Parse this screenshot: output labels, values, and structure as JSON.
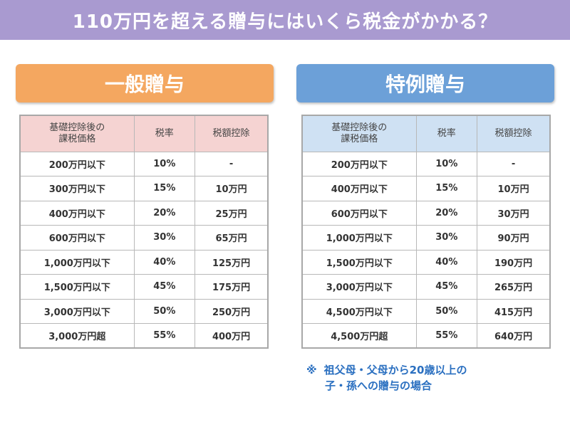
{
  "title": "110万円を超える贈与にはいくら税金がかかる？",
  "general": {
    "label": "一般贈与",
    "headers": [
      "基礎控除後の\n課税価格",
      "税率",
      "税額控除"
    ],
    "rows": [
      [
        "200万円以下",
        "10%",
        "-"
      ],
      [
        "300万円以下",
        "15%",
        "10万円"
      ],
      [
        "400万円以下",
        "20%",
        "25万円"
      ],
      [
        "600万円以下",
        "30%",
        "65万円"
      ],
      [
        "1,000万円以下",
        "40%",
        "125万円"
      ],
      [
        "1,500万円以下",
        "45%",
        "175万円"
      ],
      [
        "3,000万円以下",
        "50%",
        "250万円"
      ],
      [
        "3,000万円超",
        "55%",
        "400万円"
      ]
    ]
  },
  "special": {
    "label": "特例贈与",
    "headers": [
      "基礎控除後の\n課税価格",
      "税率",
      "税額控除"
    ],
    "rows": [
      [
        "200万円以下",
        "10%",
        "-"
      ],
      [
        "400万円以下",
        "15%",
        "10万円"
      ],
      [
        "600万円以下",
        "20%",
        "30万円"
      ],
      [
        "1,000万円以下",
        "30%",
        "90万円"
      ],
      [
        "1,500万円以下",
        "40%",
        "190万円"
      ],
      [
        "3,000万円以下",
        "45%",
        "265万円"
      ],
      [
        "4,500万円以下",
        "50%",
        "415万円"
      ],
      [
        "4,500万円超",
        "55%",
        "640万円"
      ]
    ]
  },
  "note": {
    "mark": "※",
    "line1": "祖父母・父母から20歳以上の",
    "line2": "子・孫への贈与の場合"
  },
  "colors": {
    "title_bar": "#a99ad0",
    "general_banner": "#f4a760",
    "special_banner": "#6ca0d8",
    "general_header": "#f5d3d2",
    "special_header": "#cfe1f3",
    "note_text": "#2a6fc0"
  }
}
